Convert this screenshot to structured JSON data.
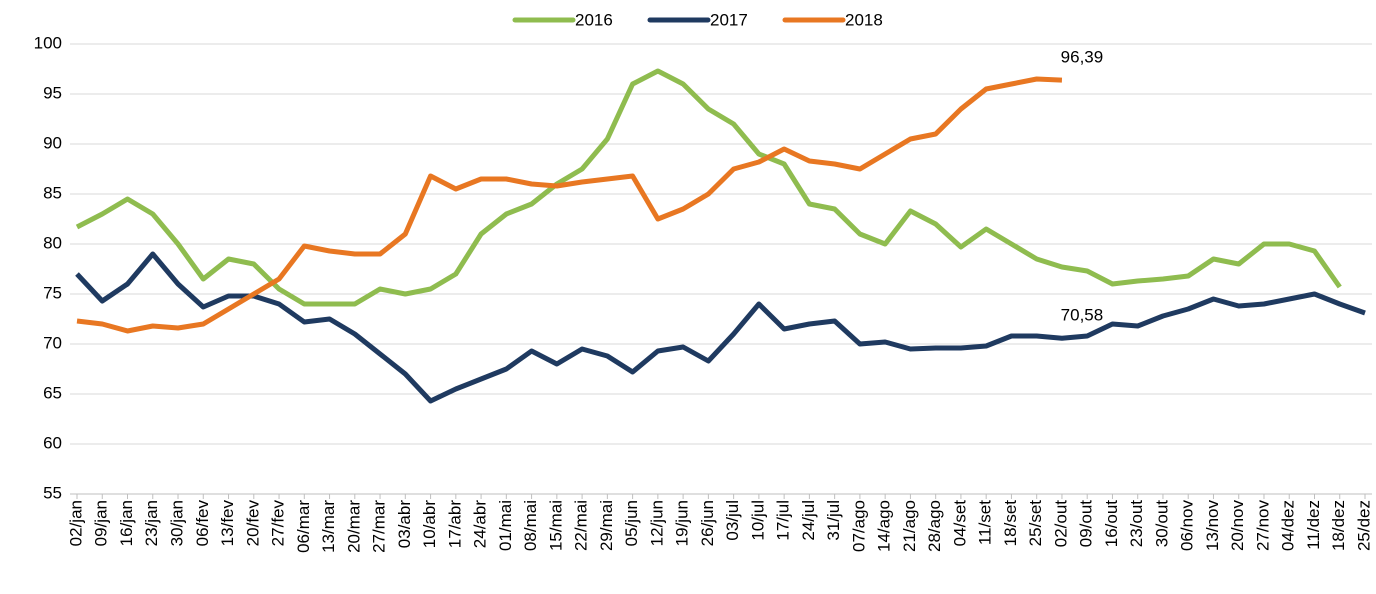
{
  "chart_data": {
    "type": "line",
    "categories": [
      "02/jan",
      "09/jan",
      "16/jan",
      "23/jan",
      "30/jan",
      "06/fev",
      "13/fev",
      "20/fev",
      "27/fev",
      "06/mar",
      "13/mar",
      "20/mar",
      "27/mar",
      "03/abr",
      "10/abr",
      "17/abr",
      "24/abr",
      "01/mai",
      "08/mai",
      "15/mai",
      "22/mai",
      "29/mai",
      "05/jun",
      "12/jun",
      "19/jun",
      "26/jun",
      "03/jul",
      "10/jul",
      "17/jul",
      "24/jul",
      "31/jul",
      "07/ago",
      "14/ago",
      "21/ago",
      "28/ago",
      "04/set",
      "11/set",
      "18/set",
      "25/set",
      "02/out",
      "09/out",
      "16/out",
      "23/out",
      "30/out",
      "06/nov",
      "13/nov",
      "20/nov",
      "27/nov",
      "04/dez",
      "11/dez",
      "18/dez",
      "25/dez"
    ],
    "series": [
      {
        "name": "2016",
        "color": "#8fbc4f",
        "values": [
          81.7,
          83,
          84.5,
          83,
          80,
          76.5,
          78.5,
          78,
          75.5,
          74,
          74,
          74,
          75.5,
          75,
          75.5,
          77,
          81,
          83,
          84,
          86,
          87.5,
          90.5,
          96,
          97.3,
          96,
          93.5,
          92,
          89,
          88,
          84,
          83.5,
          81,
          80,
          83.3,
          82,
          79.7,
          81.5,
          80,
          78.5,
          77.7,
          77.3,
          76,
          76.3,
          76.5,
          76.8,
          78.5,
          78,
          80,
          80,
          79.3,
          75.7,
          null
        ]
      },
      {
        "name": "2017",
        "color": "#1f3a60",
        "values": [
          77,
          74.3,
          76,
          79,
          76,
          73.7,
          74.8,
          74.8,
          74,
          72.2,
          72.5,
          71,
          69,
          67,
          64.3,
          65.5,
          66.5,
          67.5,
          69.3,
          68,
          69.5,
          68.8,
          67.2,
          69.3,
          69.7,
          68.3,
          71,
          74,
          71.5,
          72,
          72.3,
          70,
          70.2,
          69.5,
          69.6,
          69.6,
          69.8,
          70.8,
          70.8,
          70.58,
          70.8,
          72,
          71.8,
          72.8,
          73.5,
          74.5,
          73.8,
          74,
          74.5,
          75,
          74,
          73.1
        ],
        "value_labels": [
          null,
          null,
          null,
          null,
          null,
          null,
          null,
          null,
          null,
          null,
          null,
          null,
          null,
          null,
          null,
          null,
          null,
          null,
          null,
          null,
          null,
          null,
          null,
          null,
          null,
          null,
          null,
          null,
          null,
          null,
          null,
          null,
          null,
          null,
          null,
          null,
          null,
          null,
          null,
          "70,58",
          null,
          null,
          null,
          null,
          null,
          null,
          null,
          null,
          null,
          null,
          null,
          null
        ]
      },
      {
        "name": "2018",
        "color": "#e87722",
        "values": [
          72.3,
          72,
          71.3,
          71.8,
          71.6,
          72,
          73.5,
          75,
          76.5,
          79.8,
          79.3,
          79,
          79,
          81,
          86.8,
          85.5,
          86.5,
          86.5,
          86,
          85.8,
          86.2,
          86.5,
          86.8,
          82.5,
          83.5,
          85,
          87.5,
          88.2,
          89.5,
          88.3,
          88,
          87.5,
          89,
          90.5,
          91,
          93.5,
          95.5,
          96,
          96.5,
          96.39,
          null,
          null,
          null,
          null,
          null,
          null,
          null,
          null,
          null,
          null,
          null,
          null
        ],
        "value_labels": [
          null,
          null,
          null,
          null,
          null,
          null,
          null,
          null,
          null,
          null,
          null,
          null,
          null,
          null,
          null,
          null,
          null,
          null,
          null,
          null,
          null,
          null,
          null,
          null,
          null,
          null,
          null,
          null,
          null,
          null,
          null,
          null,
          null,
          null,
          null,
          null,
          null,
          null,
          null,
          "96,39",
          null,
          null,
          null,
          null,
          null,
          null,
          null,
          null,
          null,
          null,
          null,
          null
        ]
      }
    ],
    "ylim": [
      55,
      100
    ],
    "yticks": [
      55,
      60,
      65,
      70,
      75,
      80,
      85,
      90,
      95,
      100
    ],
    "grid": true,
    "legend": "top"
  }
}
